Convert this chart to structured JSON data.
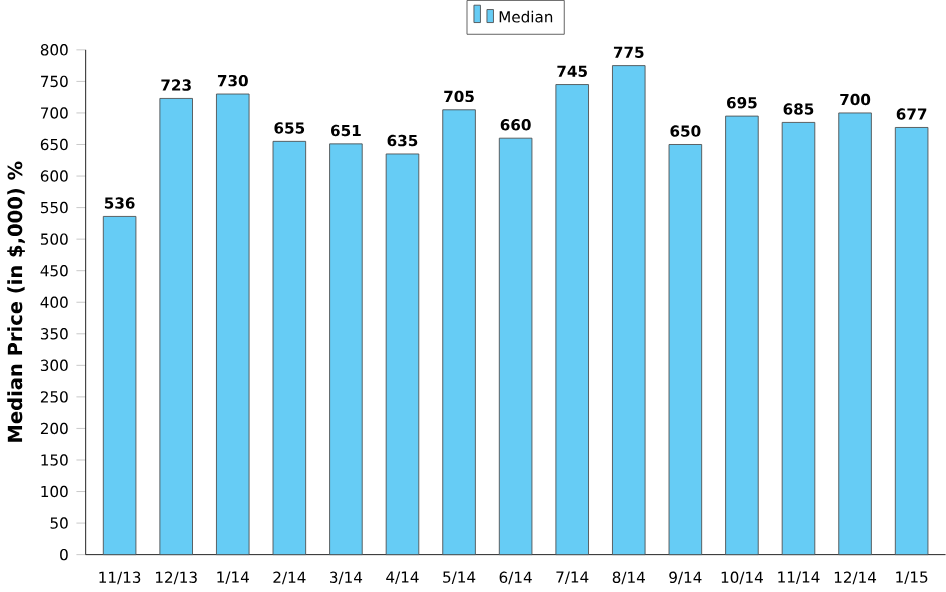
{
  "chart_data": {
    "type": "bar",
    "ylabel": "Median Price (in $,000) %",
    "categories": [
      "11/13",
      "12/13",
      "1/14",
      "2/14",
      "3/14",
      "4/14",
      "5/14",
      "6/14",
      "7/14",
      "8/14",
      "9/14",
      "10/14",
      "11/14",
      "12/14",
      "1/15"
    ],
    "series": [
      {
        "name": "Median",
        "color": "#66ccf5",
        "values": [
          536,
          723,
          730,
          655,
          651,
          635,
          705,
          660,
          745,
          775,
          650,
          695,
          685,
          700,
          677
        ]
      }
    ],
    "ylim": [
      0,
      800
    ],
    "yticks": [
      0,
      50,
      100,
      150,
      200,
      250,
      300,
      350,
      400,
      450,
      500,
      550,
      600,
      650,
      700,
      750,
      800
    ],
    "data_labels": true,
    "legend": "top",
    "grid": false
  }
}
